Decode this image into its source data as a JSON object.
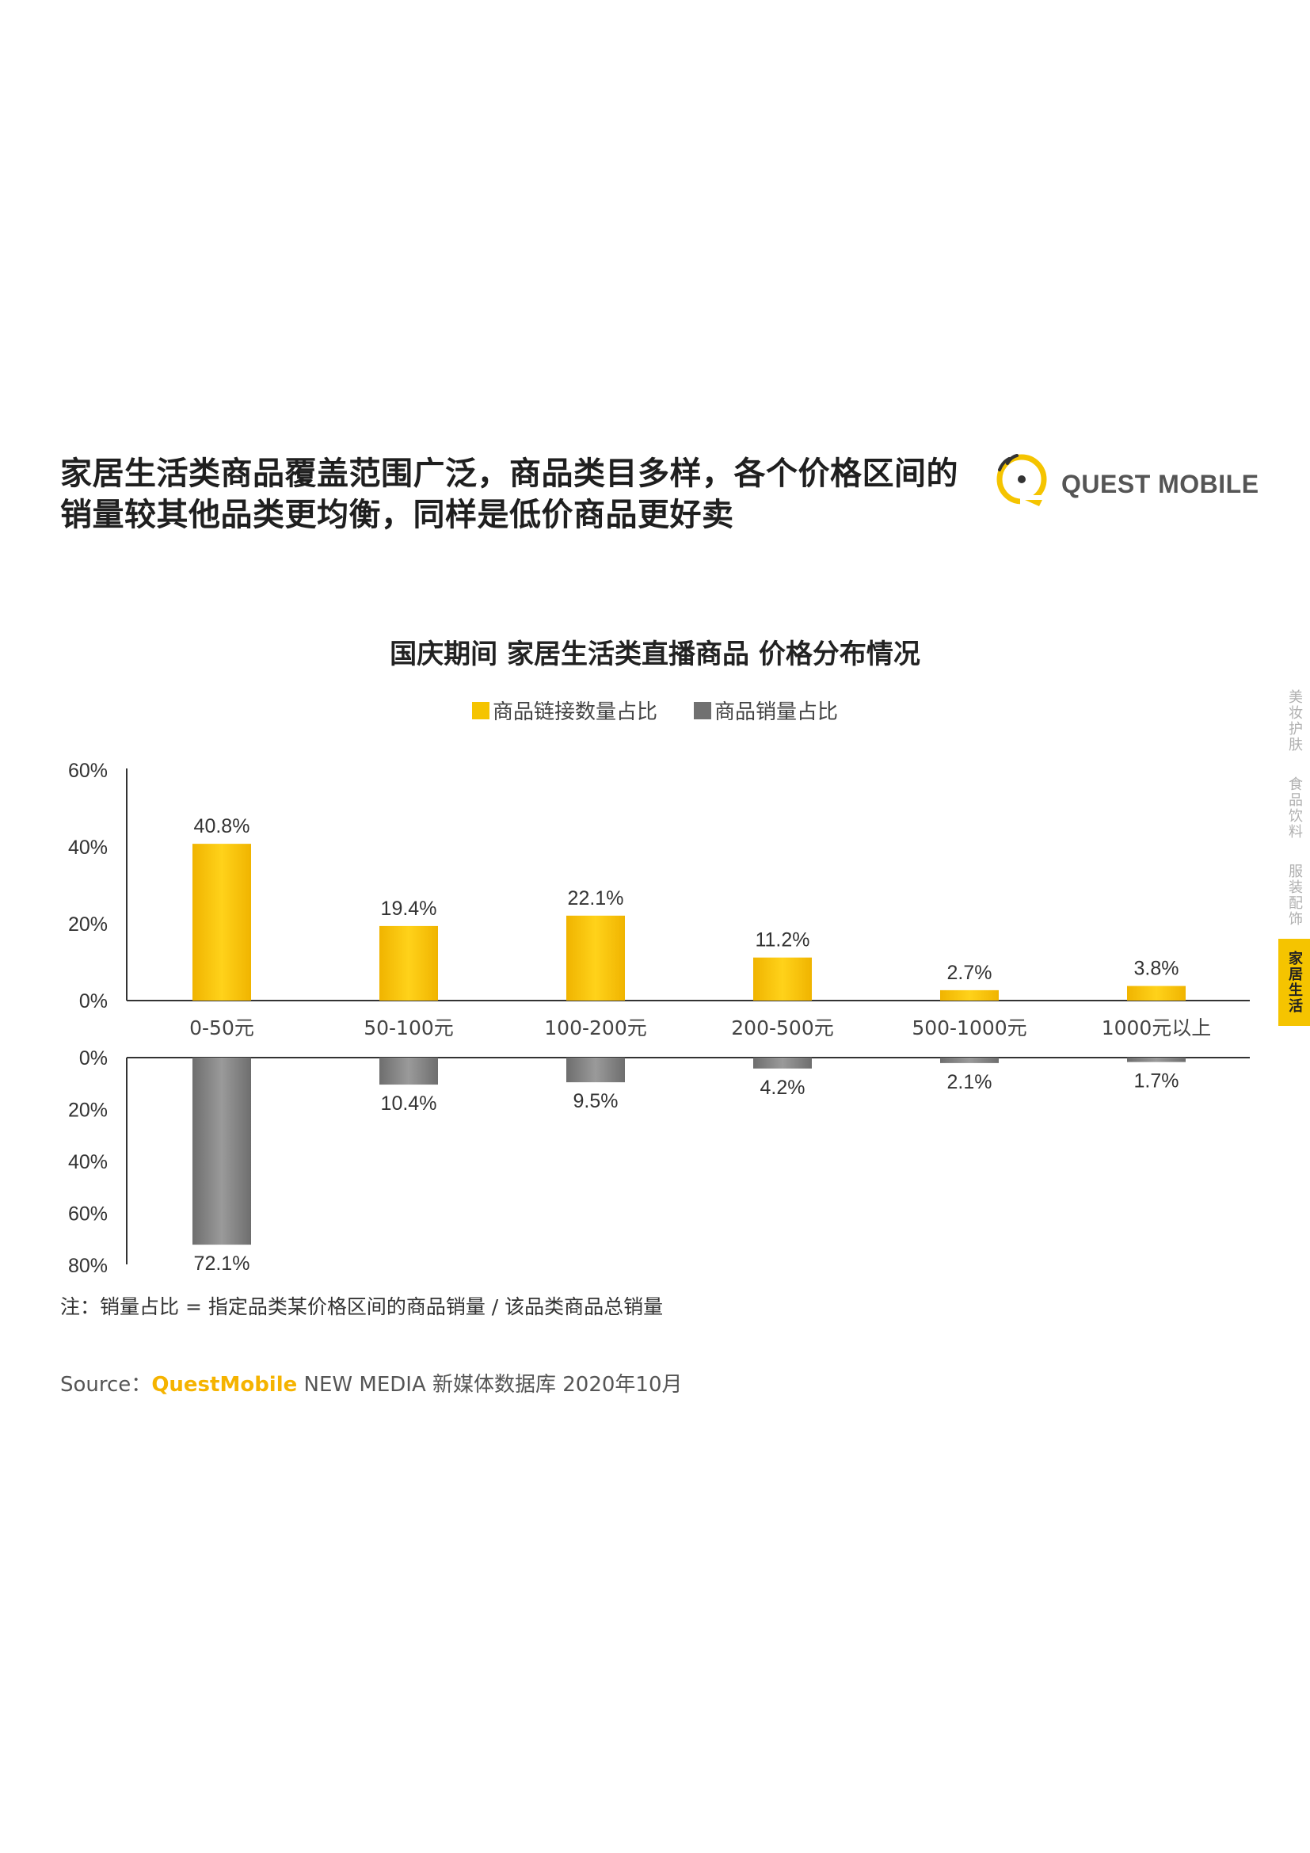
{
  "headline": {
    "line1": "家居生活类商品覆盖范围广泛，商品类目多样，各个价格区间的",
    "line2": "销量较其他品类更均衡，同样是低价商品更好卖"
  },
  "logo": {
    "text": "QUEST MOBILE"
  },
  "side_tabs": [
    {
      "label": "美妆护肤",
      "active": false
    },
    {
      "label": "食品饮料",
      "active": false
    },
    {
      "label": "服装配饰",
      "active": false
    },
    {
      "label": "家居生活",
      "active": true
    }
  ],
  "chart_data": {
    "type": "bar",
    "title": "国庆期间 家居生活类直播商品 价格分布情况",
    "categories": [
      "0-50元",
      "50-100元",
      "100-200元",
      "200-500元",
      "500-1000元",
      "1000元以上"
    ],
    "series": [
      {
        "name": "商品链接数量占比",
        "color": "#f5c400",
        "values": [
          40.8,
          19.4,
          22.1,
          11.2,
          2.7,
          3.8
        ],
        "labels": [
          "40.8%",
          "19.4%",
          "22.1%",
          "11.2%",
          "2.7%",
          "3.8%"
        ],
        "ylim": [
          0,
          60
        ],
        "ticks": [
          "0%",
          "20%",
          "40%",
          "60%"
        ]
      },
      {
        "name": "商品销量占比",
        "color": "#808080",
        "values": [
          72.1,
          10.4,
          9.5,
          4.2,
          2.1,
          1.7
        ],
        "labels": [
          "72.1%",
          "10.4%",
          "9.5%",
          "4.2%",
          "2.1%",
          "1.7%"
        ],
        "ylim": [
          0,
          80
        ],
        "ticks": [
          "0%",
          "20%",
          "40%",
          "60%",
          "80%"
        ]
      }
    ]
  },
  "note": "注：销量占比 = 指定品类某价格区间的商品销量 / 该品类商品总销量",
  "source": {
    "prefix": "Source：",
    "brand": "QuestMobile",
    "rest": " NEW MEDIA 新媒体数据库 2020年10月"
  }
}
